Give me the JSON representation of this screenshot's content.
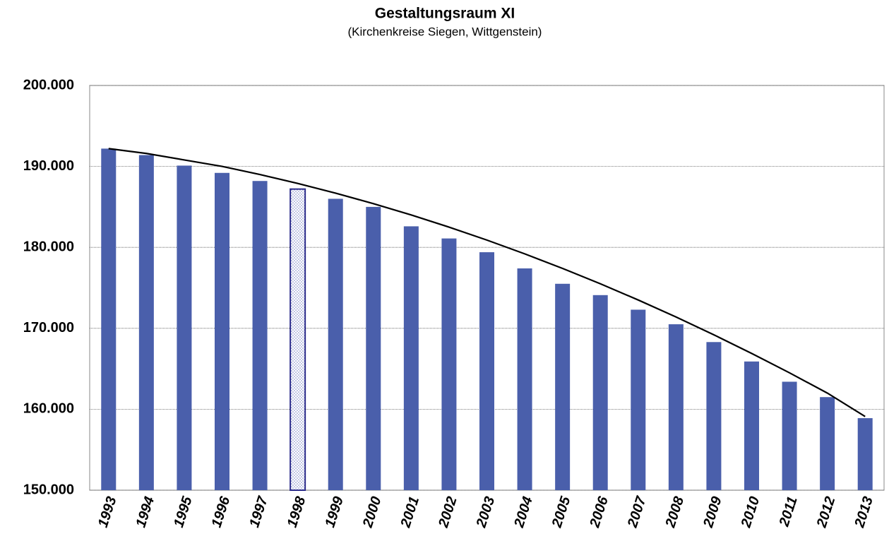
{
  "chart_data": {
    "type": "bar",
    "title": "Gestaltungsraum XI",
    "subtitle": "(Kirchenkreise Siegen, Wittgenstein)",
    "categories": [
      "1993",
      "1994",
      "1995",
      "1996",
      "1997",
      "1998",
      "1999",
      "2000",
      "2001",
      "2002",
      "2003",
      "2004",
      "2005",
      "2006",
      "2007",
      "2008",
      "2009",
      "2010",
      "2011",
      "2012",
      "2013"
    ],
    "values": [
      192200,
      191400,
      190100,
      189200,
      188200,
      187200,
      186000,
      185000,
      182600,
      181100,
      179400,
      177400,
      175500,
      174100,
      172300,
      170500,
      168300,
      165900,
      163400,
      161500,
      158900
    ],
    "color": "#4a5fab",
    "highlight_index": 5,
    "trendline": {
      "color": "#000000",
      "values": [
        192200,
        191600,
        190800,
        190000,
        189000,
        187900,
        186700,
        185400,
        184000,
        182500,
        180900,
        179200,
        177400,
        175500,
        173500,
        171400,
        169200,
        166900,
        164500,
        162000,
        159100
      ]
    },
    "ylim": [
      150000,
      200000
    ],
    "yticks": [
      {
        "value": 150000,
        "label": "150.000"
      },
      {
        "value": 160000,
        "label": "160.000"
      },
      {
        "value": 170000,
        "label": "170.000"
      },
      {
        "value": 180000,
        "label": "180.000"
      },
      {
        "value": 190000,
        "label": "190.000"
      },
      {
        "value": 200000,
        "label": "200.000"
      }
    ],
    "grid": true
  }
}
